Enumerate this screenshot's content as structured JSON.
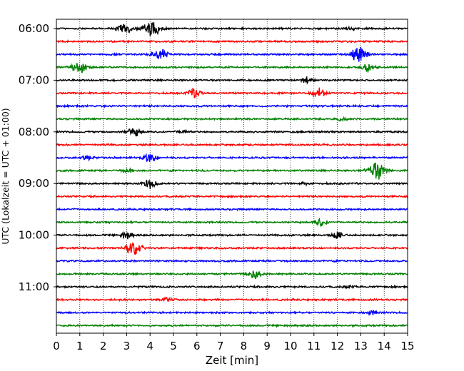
{
  "chart_data": {
    "type": "line",
    "title": "",
    "xlabel": "Zeit  [min]",
    "ylabel": "UTC (Lokalzeit = UTC + 01:00)",
    "xlim": [
      0,
      15
    ],
    "x_ticks": [
      "0",
      "1",
      "2",
      "3",
      "4",
      "5",
      "6",
      "7",
      "8",
      "9",
      "10",
      "11",
      "12",
      "13",
      "14",
      "15"
    ],
    "y_tick_labels": [
      "06:00",
      "07:00",
      "08:00",
      "09:00",
      "10:00",
      "11:00"
    ],
    "grid": "vertical dotted",
    "trace_interval_min": 15,
    "series_colors": [
      "#000000",
      "#ff0000",
      "#0000ff",
      "#008000"
    ],
    "traces": [
      {
        "start": "06:00",
        "color": "#000000",
        "bursts": [
          {
            "t": 2.9,
            "amp": 9
          },
          {
            "t": 4.1,
            "amp": 13
          },
          {
            "t": 12.6,
            "amp": 2
          }
        ]
      },
      {
        "start": "06:15",
        "color": "#ff0000",
        "bursts": []
      },
      {
        "start": "06:30",
        "color": "#0000ff",
        "bursts": [
          {
            "t": 4.4,
            "amp": 10
          },
          {
            "t": 12.9,
            "amp": 12
          }
        ]
      },
      {
        "start": "06:45",
        "color": "#008000",
        "bursts": [
          {
            "t": 1.0,
            "amp": 10
          },
          {
            "t": 13.3,
            "amp": 6
          }
        ]
      },
      {
        "start": "07:00",
        "color": "#000000",
        "bursts": [
          {
            "t": 10.7,
            "amp": 5
          }
        ]
      },
      {
        "start": "07:15",
        "color": "#ff0000",
        "bursts": [
          {
            "t": 5.9,
            "amp": 7
          },
          {
            "t": 11.2,
            "amp": 7
          }
        ]
      },
      {
        "start": "07:30",
        "color": "#0000ff",
        "bursts": []
      },
      {
        "start": "07:45",
        "color": "#008000",
        "bursts": [
          {
            "t": 12.2,
            "amp": 3
          }
        ]
      },
      {
        "start": "08:00",
        "color": "#000000",
        "bursts": [
          {
            "t": 3.3,
            "amp": 7
          },
          {
            "t": 5.4,
            "amp": 3
          }
        ]
      },
      {
        "start": "08:15",
        "color": "#ff0000",
        "bursts": []
      },
      {
        "start": "08:30",
        "color": "#0000ff",
        "bursts": [
          {
            "t": 1.3,
            "amp": 3
          },
          {
            "t": 4.0,
            "amp": 7
          }
        ]
      },
      {
        "start": "08:45",
        "color": "#008000",
        "bursts": [
          {
            "t": 3.0,
            "amp": 3
          },
          {
            "t": 13.7,
            "amp": 14
          }
        ]
      },
      {
        "start": "09:00",
        "color": "#000000",
        "bursts": [
          {
            "t": 4.0,
            "amp": 7
          },
          {
            "t": 10.6,
            "amp": 2
          }
        ]
      },
      {
        "start": "09:15",
        "color": "#ff0000",
        "bursts": []
      },
      {
        "start": "09:30",
        "color": "#0000ff",
        "bursts": []
      },
      {
        "start": "09:45",
        "color": "#008000",
        "bursts": [
          {
            "t": 11.3,
            "amp": 6
          }
        ]
      },
      {
        "start": "10:00",
        "color": "#000000",
        "bursts": [
          {
            "t": 3.0,
            "amp": 5
          },
          {
            "t": 12.0,
            "amp": 5
          }
        ]
      },
      {
        "start": "10:15",
        "color": "#ff0000",
        "bursts": [
          {
            "t": 3.3,
            "amp": 10
          }
        ]
      },
      {
        "start": "10:30",
        "color": "#0000ff",
        "bursts": []
      },
      {
        "start": "10:45",
        "color": "#008000",
        "bursts": [
          {
            "t": 8.5,
            "amp": 7
          }
        ]
      },
      {
        "start": "11:00",
        "color": "#000000",
        "bursts": [
          {
            "t": 12.5,
            "amp": 2
          }
        ]
      },
      {
        "start": "11:15",
        "color": "#ff0000",
        "bursts": [
          {
            "t": 4.7,
            "amp": 3
          }
        ]
      },
      {
        "start": "11:30",
        "color": "#0000ff",
        "bursts": [
          {
            "t": 13.5,
            "amp": 3
          }
        ]
      },
      {
        "start": "11:45",
        "color": "#008000",
        "bursts": []
      }
    ]
  }
}
